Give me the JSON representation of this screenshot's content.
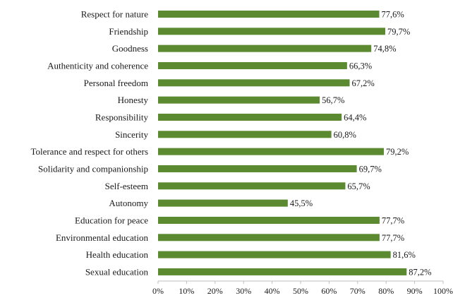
{
  "chart_data": {
    "type": "bar",
    "orientation": "horizontal",
    "categories": [
      "Respect for nature",
      "Friendship",
      "Goodness",
      "Authenticity and coherence",
      "Personal freedom",
      "Honesty",
      "Responsibility",
      "Sincerity",
      "Tolerance and respect for others",
      "Solidarity and companionship",
      "Self-esteem",
      "Autonomy",
      "Education for peace",
      "Environmental education",
      "Health education",
      "Sexual education"
    ],
    "values": [
      77.6,
      79.7,
      74.8,
      66.3,
      67.2,
      56.7,
      64.4,
      60.8,
      79.2,
      69.7,
      65.7,
      45.5,
      77.7,
      77.7,
      81.6,
      87.2
    ],
    "value_labels": [
      "77,6%",
      "79,7%",
      "74,8%",
      "66,3%",
      "67,2%",
      "56,7%",
      "64,4%",
      "60,8%",
      "79,2%",
      "69,7%",
      "65,7%",
      "45,5%",
      "77,7%",
      "77,7%",
      "81,6%",
      "87,2%"
    ],
    "xlim": [
      0,
      100
    ],
    "x_ticks": [
      0,
      10,
      20,
      30,
      40,
      50,
      60,
      70,
      80,
      90,
      100
    ],
    "x_tick_labels": [
      "0%",
      "10%",
      "20%",
      "30%",
      "40%",
      "50%",
      "60%",
      "70%",
      "80%",
      "90%",
      "100%"
    ],
    "bar_color": "#5b8a31",
    "grid": false,
    "legend": "none",
    "title": "",
    "xlabel": "",
    "ylabel": ""
  }
}
